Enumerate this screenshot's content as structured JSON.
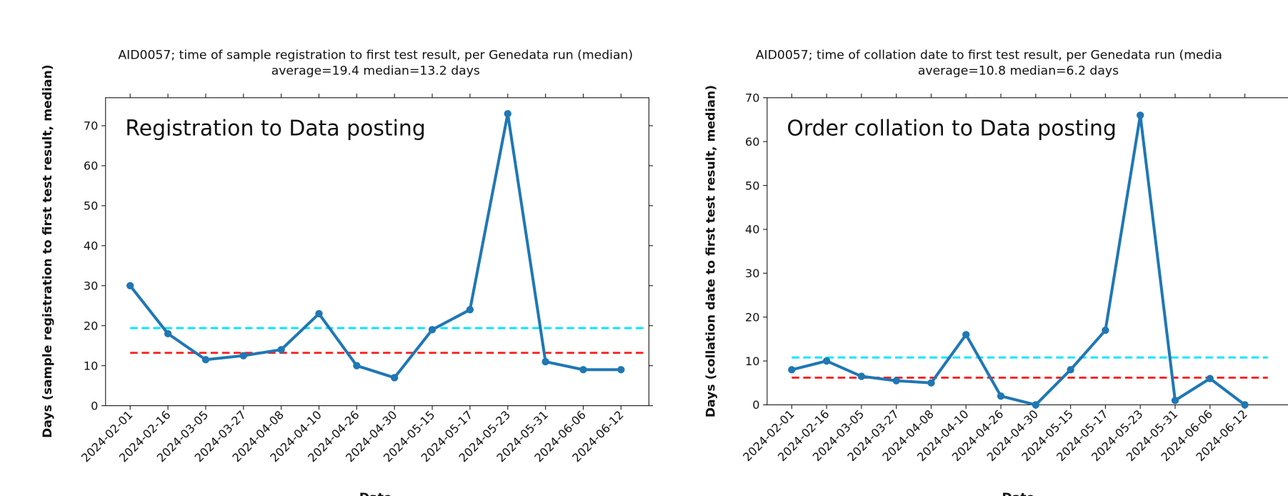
{
  "chart_data": [
    {
      "type": "line",
      "title": "AID0057; time of sample registration to first test result, per Genedata run (median)",
      "subtitle": "average=19.4 median=13.2 days",
      "annotation": "Registration to Data posting",
      "x_label": "Date",
      "y_label": "Days (sample registration to first test result, median)",
      "categories": [
        "2024-02-01",
        "2024-02-16",
        "2024-03-05",
        "2024-03-27",
        "2024-04-08",
        "2024-04-10",
        "2024-04-26",
        "2024-04-30",
        "2024-05-15",
        "2024-05-17",
        "2024-05-23",
        "2024-05-31",
        "2024-06-06",
        "2024-06-12"
      ],
      "values": [
        30,
        18,
        11.5,
        12.5,
        14,
        23,
        10,
        7,
        19,
        24,
        73,
        11,
        9,
        9
      ],
      "color": "#1f77b4",
      "reference_lines": [
        {
          "value": 19.4,
          "color": "#00e5ff"
        },
        {
          "value": 13.2,
          "color": "#ff2020"
        }
      ],
      "ylim": [
        0,
        77
      ],
      "yticks": [
        0,
        10,
        20,
        30,
        40,
        50,
        60,
        70
      ]
    },
    {
      "type": "line",
      "title": "AID0057; time of collation date to first test result, per Genedata run (media",
      "subtitle": "average=10.8 median=6.2 days",
      "annotation": "Order collation to Data posting",
      "x_label": "Date",
      "y_label": "Days (collation date to first test result, median)",
      "categories": [
        "2024-02-01",
        "2024-02-16",
        "2024-03-05",
        "2024-03-27",
        "2024-04-08",
        "2024-04-10",
        "2024-04-26",
        "2024-04-30",
        "2024-05-15",
        "2024-05-17",
        "2024-05-23",
        "2024-05-31",
        "2024-06-06",
        "2024-06-12"
      ],
      "values": [
        8,
        10,
        6.5,
        5.5,
        5,
        16,
        2,
        0,
        8,
        17,
        66,
        1,
        6,
        0
      ],
      "color": "#1f77b4",
      "reference_lines": [
        {
          "value": 10.8,
          "color": "#00e5ff"
        },
        {
          "value": 6.2,
          "color": "#ff2020"
        }
      ],
      "ylim": [
        0,
        70
      ],
      "yticks": [
        0,
        10,
        20,
        30,
        40,
        50,
        60,
        70
      ]
    }
  ]
}
